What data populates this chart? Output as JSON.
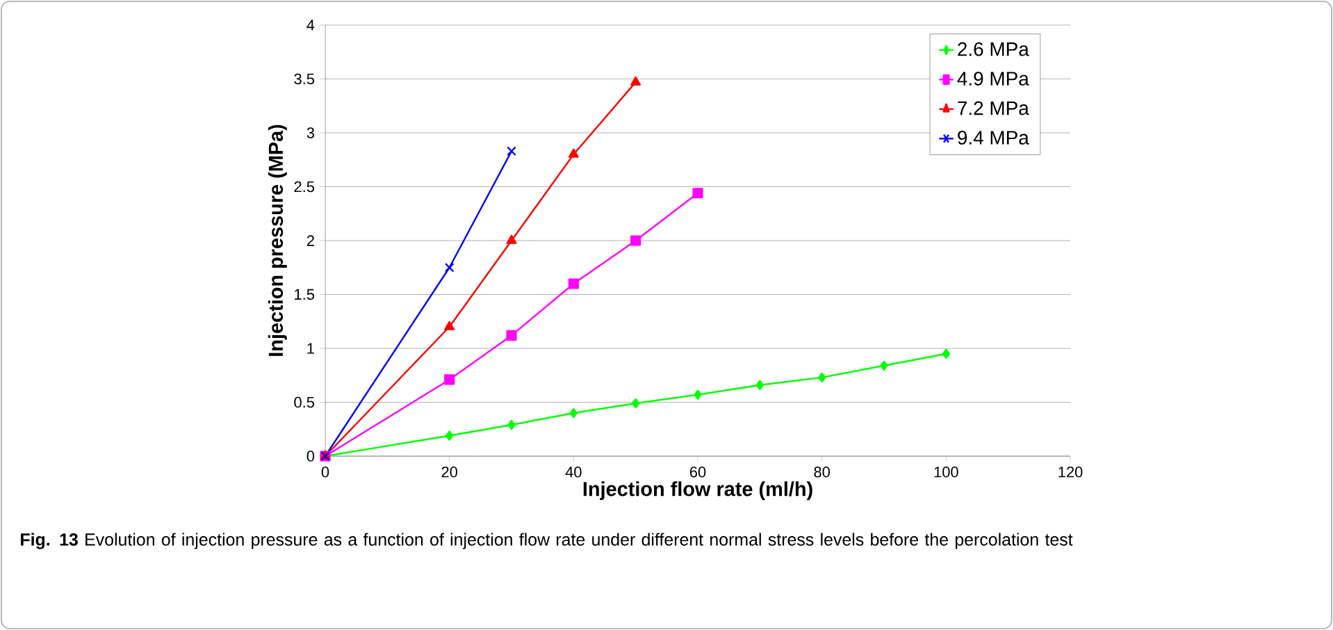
{
  "chart_data": {
    "type": "line",
    "xlabel": "Injection flow rate (ml/h)",
    "ylabel": "Injection pressure (MPa)",
    "xlim": [
      0,
      120
    ],
    "xticks": [
      0,
      20,
      40,
      60,
      80,
      100,
      120
    ],
    "ylim": [
      0,
      4
    ],
    "yticks": [
      0,
      0.5,
      1,
      1.5,
      2,
      2.5,
      3,
      3.5,
      4
    ],
    "grid": "y",
    "legend": "top right",
    "series": [
      {
        "name": "2.6 MPa",
        "color": "#00ff00",
        "marker": "diamond",
        "x": [
          0,
          20,
          30,
          40,
          50,
          60,
          70,
          80,
          90,
          100
        ],
        "values": [
          0,
          0.19,
          0.29,
          0.4,
          0.49,
          0.57,
          0.66,
          0.73,
          0.84,
          0.95
        ]
      },
      {
        "name": "4.9 MPa",
        "color": "#ff00ff",
        "marker": "square",
        "x": [
          0,
          20,
          30,
          40,
          50,
          60
        ],
        "values": [
          0,
          0.71,
          1.12,
          1.6,
          2.0,
          2.44
        ]
      },
      {
        "name": "7.2 MPa",
        "color": "#ff0000",
        "marker": "triangle",
        "x": [
          0,
          20,
          30,
          40,
          50
        ],
        "values": [
          0,
          1.2,
          2.0,
          2.8,
          3.47
        ]
      },
      {
        "name": "9.4 MPa",
        "color": "#0000ff",
        "marker": "cross",
        "x": [
          0,
          20,
          30
        ],
        "values": [
          0,
          1.75,
          2.83
        ]
      }
    ],
    "annotations": [
      "**Fig. 13** Evolution of injection pressure as a function of injection flow rate under different normal stress levels before the percolation test"
    ]
  }
}
